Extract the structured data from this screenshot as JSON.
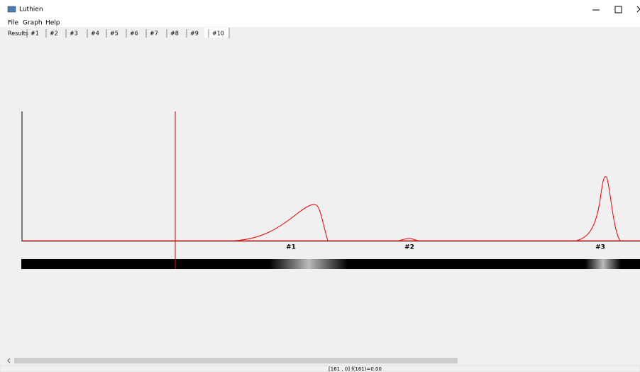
{
  "window": {
    "title": "Luthien"
  },
  "menu": [
    "File",
    "Graph",
    "Help"
  ],
  "tabs": [
    "Results",
    "#1",
    "#2",
    "#3",
    "#4",
    "#5",
    "#6",
    "#7",
    "#8",
    "#9",
    "#10"
  ],
  "peaks": [
    "#1",
    "#2",
    "#3"
  ],
  "status": "[161 , 0] f(161)=0.00"
}
